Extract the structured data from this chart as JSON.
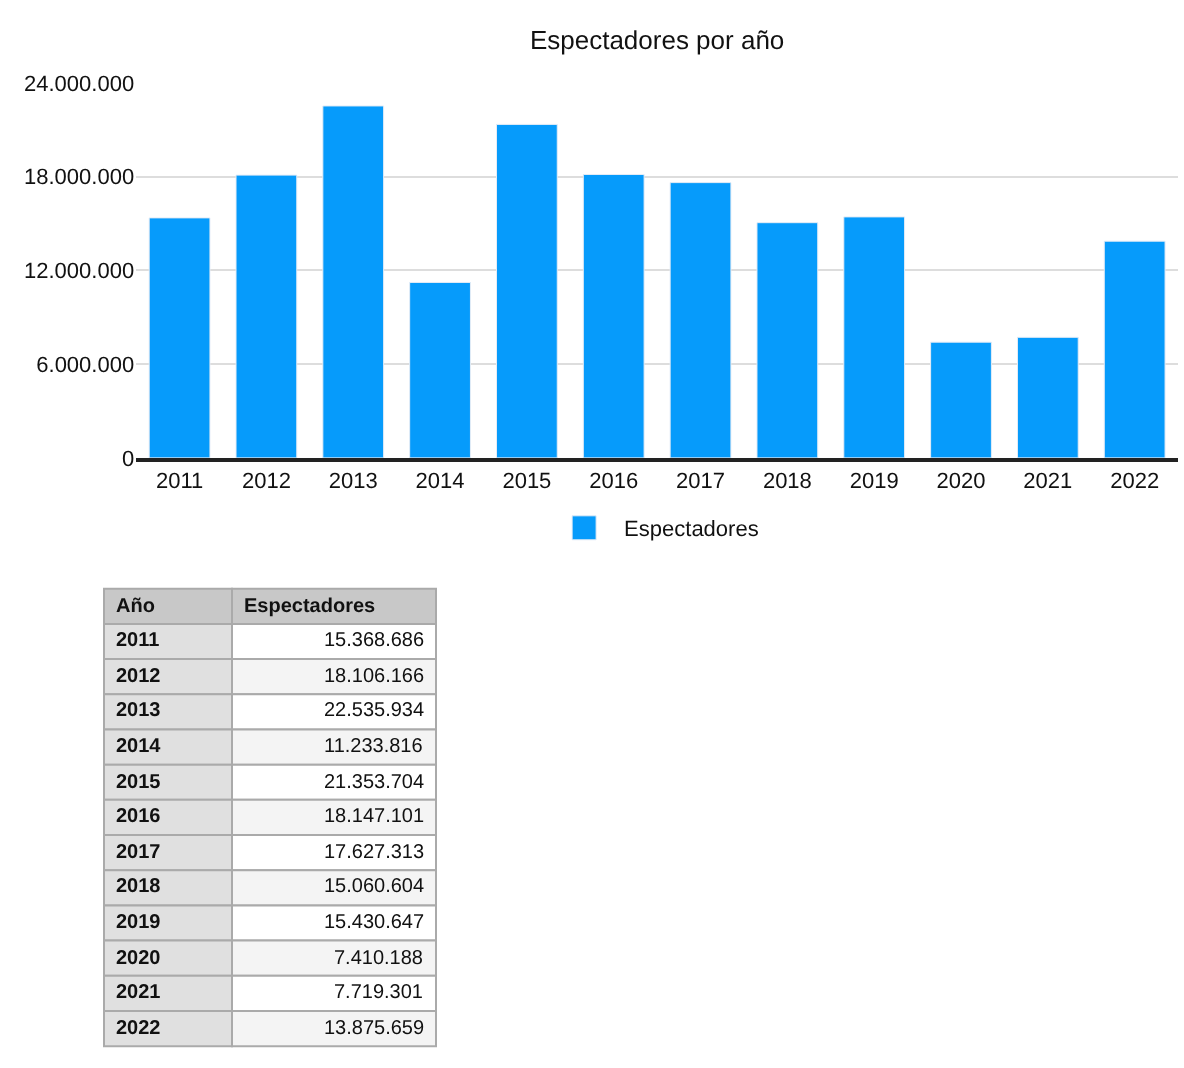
{
  "chart_data": {
    "type": "bar",
    "title": "Espectadores por año",
    "annotations": [
      "Año"
    ],
    "categories": [
      "2011",
      "2012",
      "2013",
      "2014",
      "2015",
      "2016",
      "2017",
      "2018",
      "2019",
      "2020",
      "2021",
      "2022"
    ],
    "series": [
      {
        "name": "Espectadores",
        "color": "#069bfb",
        "values": [
          15368686,
          18106166,
          22535934,
          11233816,
          21353704,
          18147101,
          17627313,
          15060604,
          15430647,
          7410188,
          7719301,
          13875659
        ]
      }
    ],
    "ylim": [
      0,
      24000000
    ],
    "yticks": [
      0,
      {
        "value": 6000000,
        "label": "6.000.000"
      },
      {
        "value": 12000000,
        "label": "12.000.000"
      },
      {
        "value": 18000000,
        "label": "18.000.000"
      },
      {
        "value": 24000000,
        "label": "24.000.000"
      }
    ],
    "value_labels": [
      "15.368.686",
      "18.106.166",
      "22.535.934",
      "11.233.816",
      "21.353.704",
      "18.147.101",
      "17.627.313",
      "15.060.604",
      "15.430.647",
      "7.410.188",
      "7.719.301",
      "13.875.659"
    ],
    "grid": "y",
    "legend": "bottom"
  }
}
